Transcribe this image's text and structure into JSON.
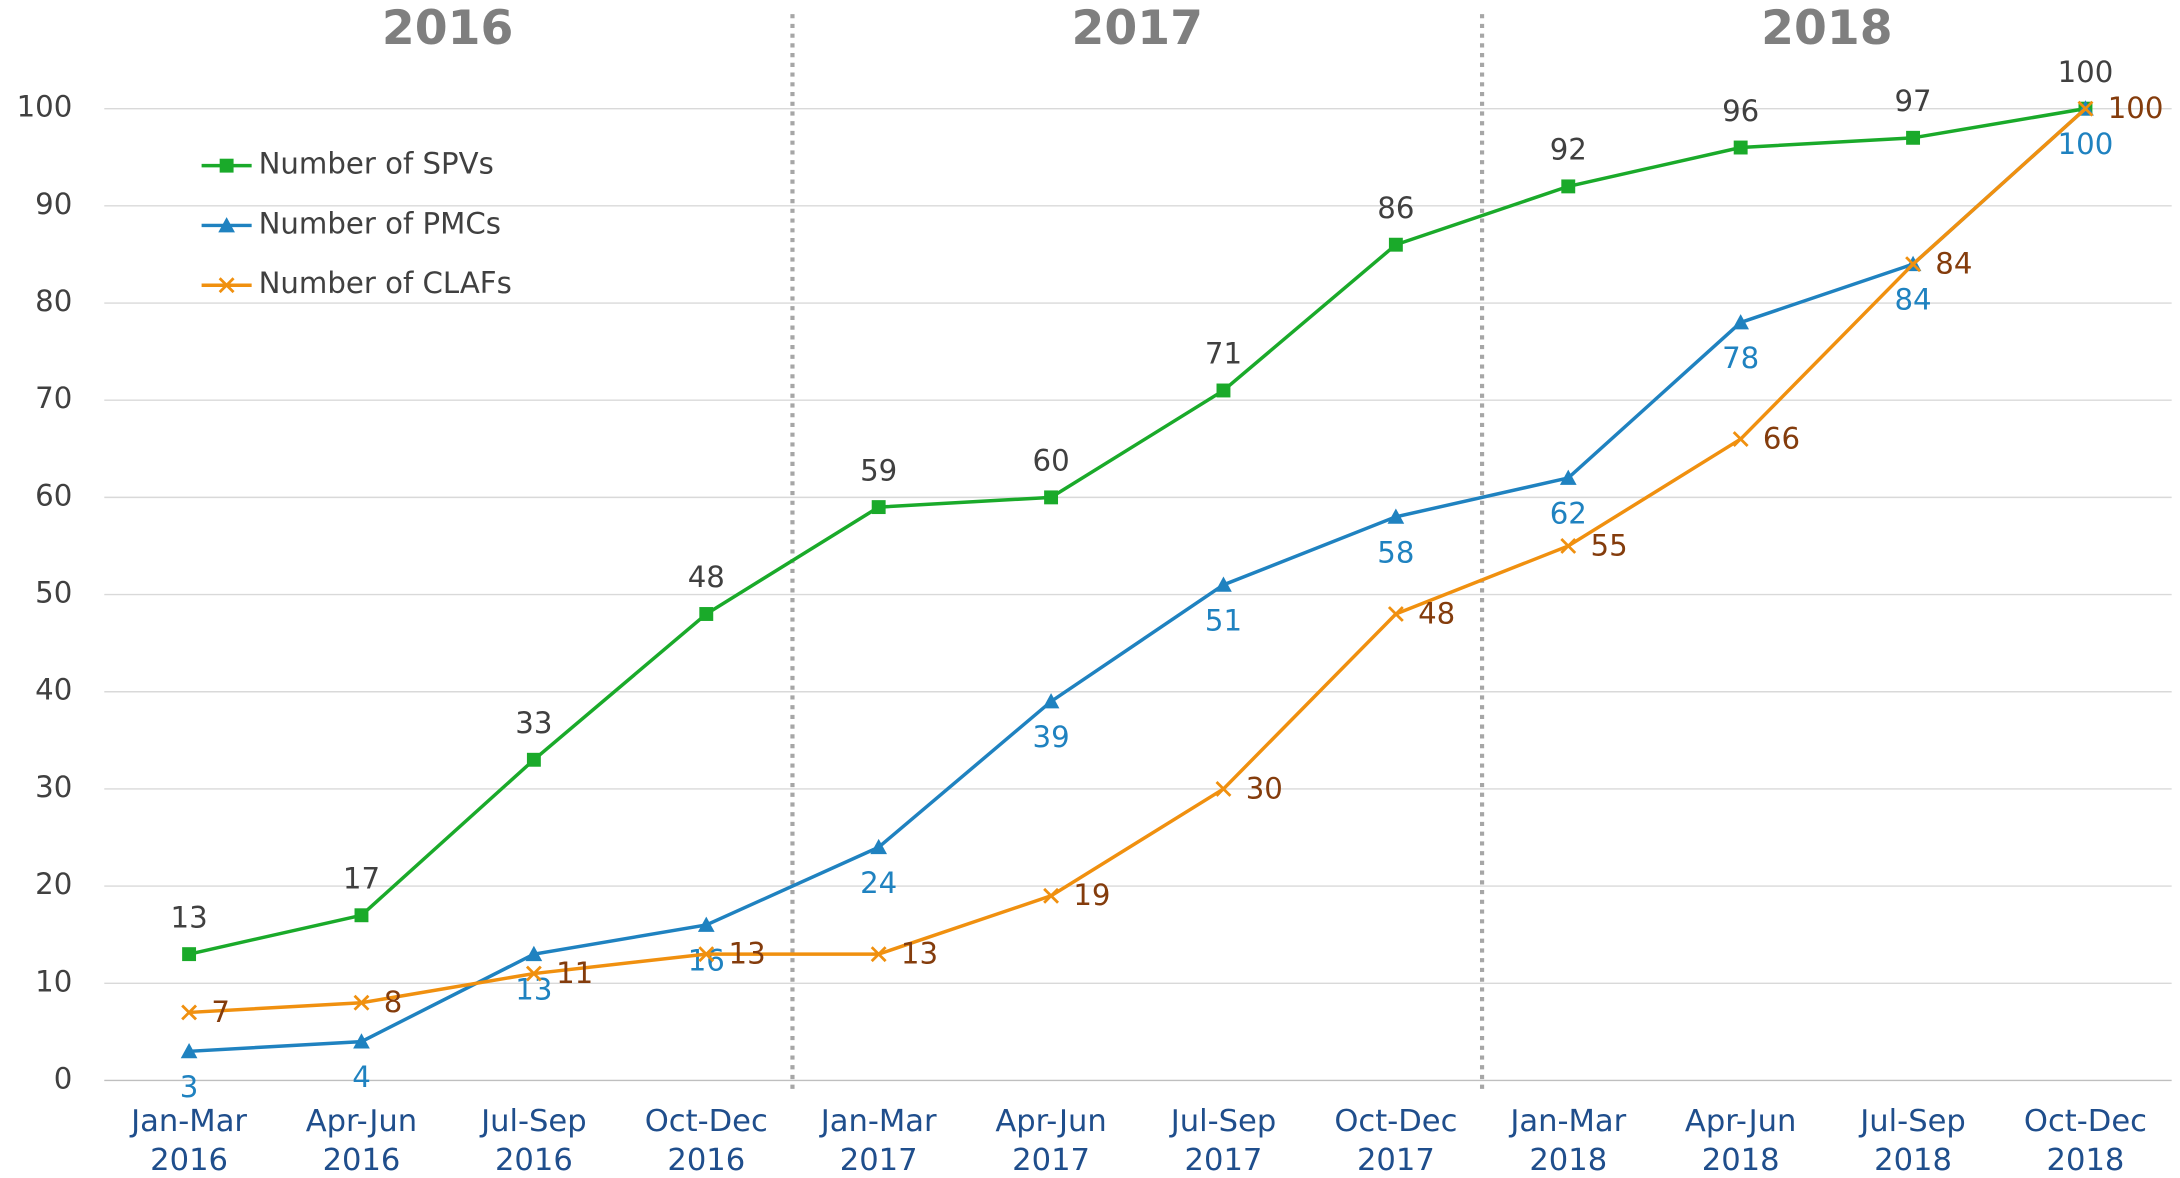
{
  "chart_data": {
    "type": "line",
    "groups": [
      "2016",
      "2017",
      "2018"
    ],
    "categories": [
      "Jan-Mar 2016",
      "Apr-Jun 2016",
      "Jul-Sep 2016",
      "Oct-Dec 2016",
      "Jan-Mar 2017",
      "Apr-Jun 2017",
      "Jul-Sep 2017",
      "Oct-Dec 2017",
      "Jan-Mar 2018",
      "Apr-Jun 2018",
      "Jul-Sep 2018",
      "Oct-Dec 2018"
    ],
    "series": [
      {
        "name": "Number of SPVs",
        "color": "#1aaa2a",
        "marker": "square",
        "values": [
          13,
          17,
          33,
          48,
          59,
          60,
          71,
          86,
          92,
          96,
          97,
          100
        ]
      },
      {
        "name": "Number of PMCs",
        "color": "#1f82c0",
        "marker": "triangle",
        "values": [
          3,
          4,
          13,
          16,
          24,
          39,
          51,
          58,
          62,
          78,
          84,
          100
        ]
      },
      {
        "name": "Number of CLAFs",
        "color": "#f0900f",
        "marker": "x",
        "values": [
          7,
          8,
          11,
          13,
          13,
          19,
          30,
          48,
          55,
          66,
          84,
          100
        ]
      }
    ],
    "ylim": [
      0,
      100
    ],
    "yticks": [
      0,
      10,
      20,
      30,
      40,
      50,
      60,
      70,
      80,
      90,
      100
    ],
    "grid": true,
    "legend": "upper left"
  }
}
